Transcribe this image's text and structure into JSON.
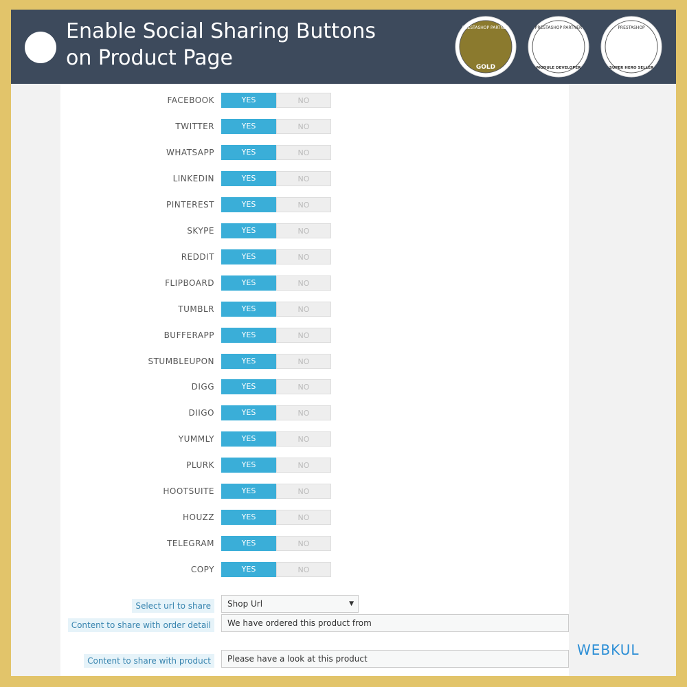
{
  "header": {
    "title_lines": [
      "Enable Social Sharing Buttons",
      "on Product Page"
    ],
    "badges": [
      {
        "top": "PRESTASHOP PARTNER",
        "bottom": "GOLD"
      },
      {
        "top": "PRESTASHOP PARTNER",
        "bottom": "MODULE DEVELOPER"
      },
      {
        "top": "PRESTASHOP",
        "bottom": "SUPER HERO SELLER"
      }
    ]
  },
  "toggles": {
    "yes": "YES",
    "no": "NO",
    "rows": [
      "FACEBOOK",
      "TWITTER",
      "WHATSAPP",
      "LINKEDIN",
      "PINTEREST",
      "SKYPE",
      "REDDIT",
      "FLIPBOARD",
      "TUMBLR",
      "BUFFERAPP",
      "STUMBLEUPON",
      "DIGG",
      "DIIGO",
      "YUMMLY",
      "PLURK",
      "HOOTSUITE",
      "HOUZZ",
      "TELEGRAM",
      "COPY"
    ]
  },
  "fields": {
    "url": {
      "label": "Select url to share",
      "value": "Shop Url"
    },
    "order": {
      "label": "Content to share with order detail",
      "value": "We have ordered this product from"
    },
    "product": {
      "label": "Content to share with product",
      "value": "Please have a look at this product"
    }
  },
  "brand": "WEBKUL"
}
